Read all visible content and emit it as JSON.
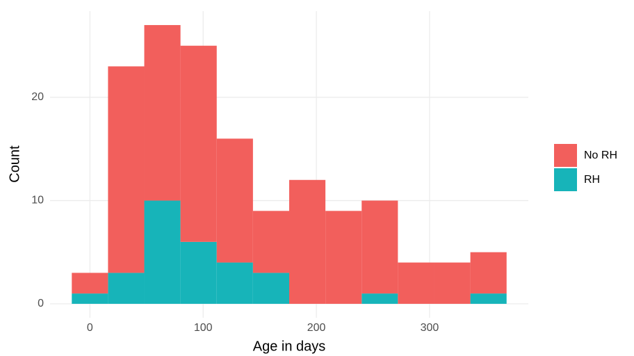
{
  "chart_data": {
    "type": "histogram",
    "x_label": "Age in days",
    "y_label": "Count",
    "bins": [
      -16,
      16,
      48,
      80,
      112,
      144,
      176,
      208,
      240,
      272,
      304,
      336,
      368
    ],
    "stacked": true,
    "series": [
      {
        "name": "No RH",
        "color": "#f25f5c",
        "values": [
          2,
          20,
          17,
          19,
          12,
          6,
          12,
          9,
          9,
          4,
          4,
          4
        ]
      },
      {
        "name": "RH",
        "color": "#17b4b9",
        "values": [
          1,
          3,
          10,
          6,
          4,
          3,
          0,
          0,
          1,
          0,
          0,
          1
        ]
      }
    ],
    "stack_order": [
      "RH",
      "No RH"
    ],
    "xlim": [
      -35.2,
      387.2
    ],
    "xticks": [
      0,
      100,
      200,
      300
    ],
    "ylim": [
      -1.35,
      28.35
    ],
    "yticks": [
      0,
      10,
      20
    ],
    "grid": true,
    "legend": "right"
  }
}
